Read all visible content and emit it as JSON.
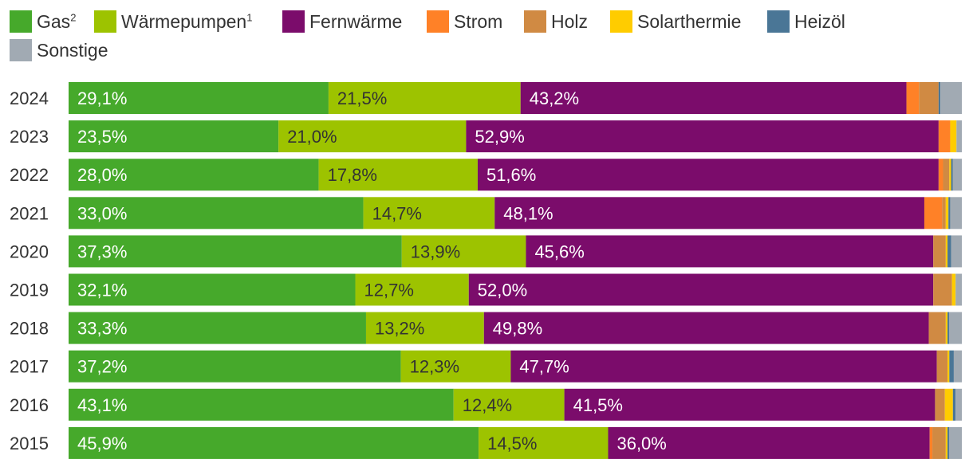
{
  "chart_data": {
    "type": "bar",
    "orientation": "horizontal",
    "stacked": true,
    "title": "",
    "xlabel": "",
    "ylabel": "",
    "xlim": [
      0,
      100
    ],
    "legend_position": "top",
    "grid": false,
    "categories": [
      "2024",
      "2023",
      "2022",
      "2021",
      "2020",
      "2019",
      "2018",
      "2017",
      "2016",
      "2015"
    ],
    "series": [
      {
        "name": "Gas",
        "sup": "2",
        "color": "#46a92b",
        "values": [
          29.1,
          23.5,
          28.0,
          33.0,
          37.3,
          32.1,
          33.3,
          37.2,
          43.1,
          45.9
        ],
        "labels": [
          "29,1%",
          "23,5%",
          "28,0%",
          "33,0%",
          "37,3%",
          "32,1%",
          "33,3%",
          "37,2%",
          "43,1%",
          "45,9%"
        ],
        "label_color": "#ffffff"
      },
      {
        "name": "Wärmepumpen",
        "sup": "1",
        "color": "#9dc300",
        "values": [
          21.5,
          21.0,
          17.8,
          14.7,
          13.9,
          12.7,
          13.2,
          12.3,
          12.4,
          14.5
        ],
        "labels": [
          "21,5%",
          "21,0%",
          "17,8%",
          "14,7%",
          "13,9%",
          "12,7%",
          "13,2%",
          "12,3%",
          "12,4%",
          "14,5%"
        ],
        "label_color": "#333333"
      },
      {
        "name": "Fernwärme",
        "sup": "",
        "color": "#7b0c6b",
        "values": [
          43.2,
          52.9,
          51.6,
          48.1,
          45.6,
          52.0,
          49.8,
          47.7,
          41.5,
          36.0
        ],
        "labels": [
          "43,2%",
          "52,9%",
          "51,6%",
          "48,1%",
          "45,6%",
          "52,0%",
          "49,8%",
          "47,7%",
          "41,5%",
          "36,0%"
        ],
        "label_color": "#ffffff"
      },
      {
        "name": "Strom",
        "sup": "",
        "color": "#ff8127",
        "values": [
          1.4,
          1.3,
          0.5,
          2.0,
          0.0,
          0.0,
          0.0,
          0.0,
          0.0,
          0.3
        ]
      },
      {
        "name": "Holz",
        "sup": "",
        "color": "#d08a43",
        "values": [
          2.2,
          0.0,
          0.7,
          0.4,
          1.4,
          2.1,
          1.9,
          1.2,
          1.1,
          1.5
        ]
      },
      {
        "name": "Solarthermie",
        "sup": "",
        "color": "#ffcc00",
        "values": [
          0.0,
          0.7,
          0.2,
          0.3,
          0.2,
          0.4,
          0.2,
          0.2,
          0.9,
          0.2
        ]
      },
      {
        "name": "Heizöl",
        "sup": "",
        "color": "#4a7696",
        "values": [
          0.2,
          0.0,
          0.2,
          0.2,
          0.4,
          0.0,
          0.2,
          0.5,
          0.3,
          0.2
        ]
      },
      {
        "name": "Sonstige",
        "sup": "",
        "color": "#a1aab3",
        "values": [
          2.4,
          0.6,
          1.0,
          1.3,
          1.2,
          0.7,
          1.4,
          0.9,
          0.7,
          1.4
        ]
      }
    ]
  }
}
